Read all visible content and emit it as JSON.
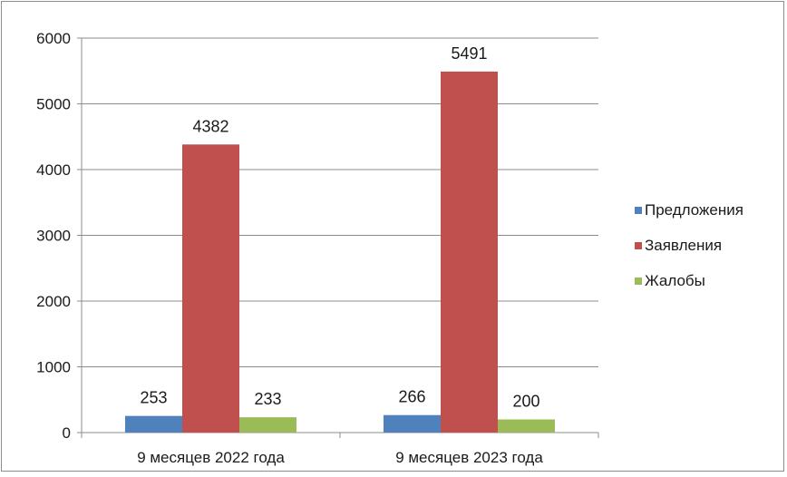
{
  "chart_data": {
    "type": "bar",
    "title": "",
    "xlabel": "",
    "ylabel": "",
    "categories": [
      "9 месяцев 2022 года",
      "9 месяцев 2023 года"
    ],
    "series": [
      {
        "name": "Предложения",
        "values": [
          253,
          266
        ],
        "color": "#4f81bd"
      },
      {
        "name": "Заявления",
        "values": [
          4382,
          5491
        ],
        "color": "#c0504d"
      },
      {
        "name": "Жалобы",
        "values": [
          233,
          200
        ],
        "color": "#9bbb59"
      }
    ],
    "ylim": [
      0,
      6000
    ],
    "yticks": [
      0,
      1000,
      2000,
      3000,
      4000,
      5000,
      6000
    ],
    "grid": true,
    "legend_position": "right",
    "data_labels": true
  }
}
